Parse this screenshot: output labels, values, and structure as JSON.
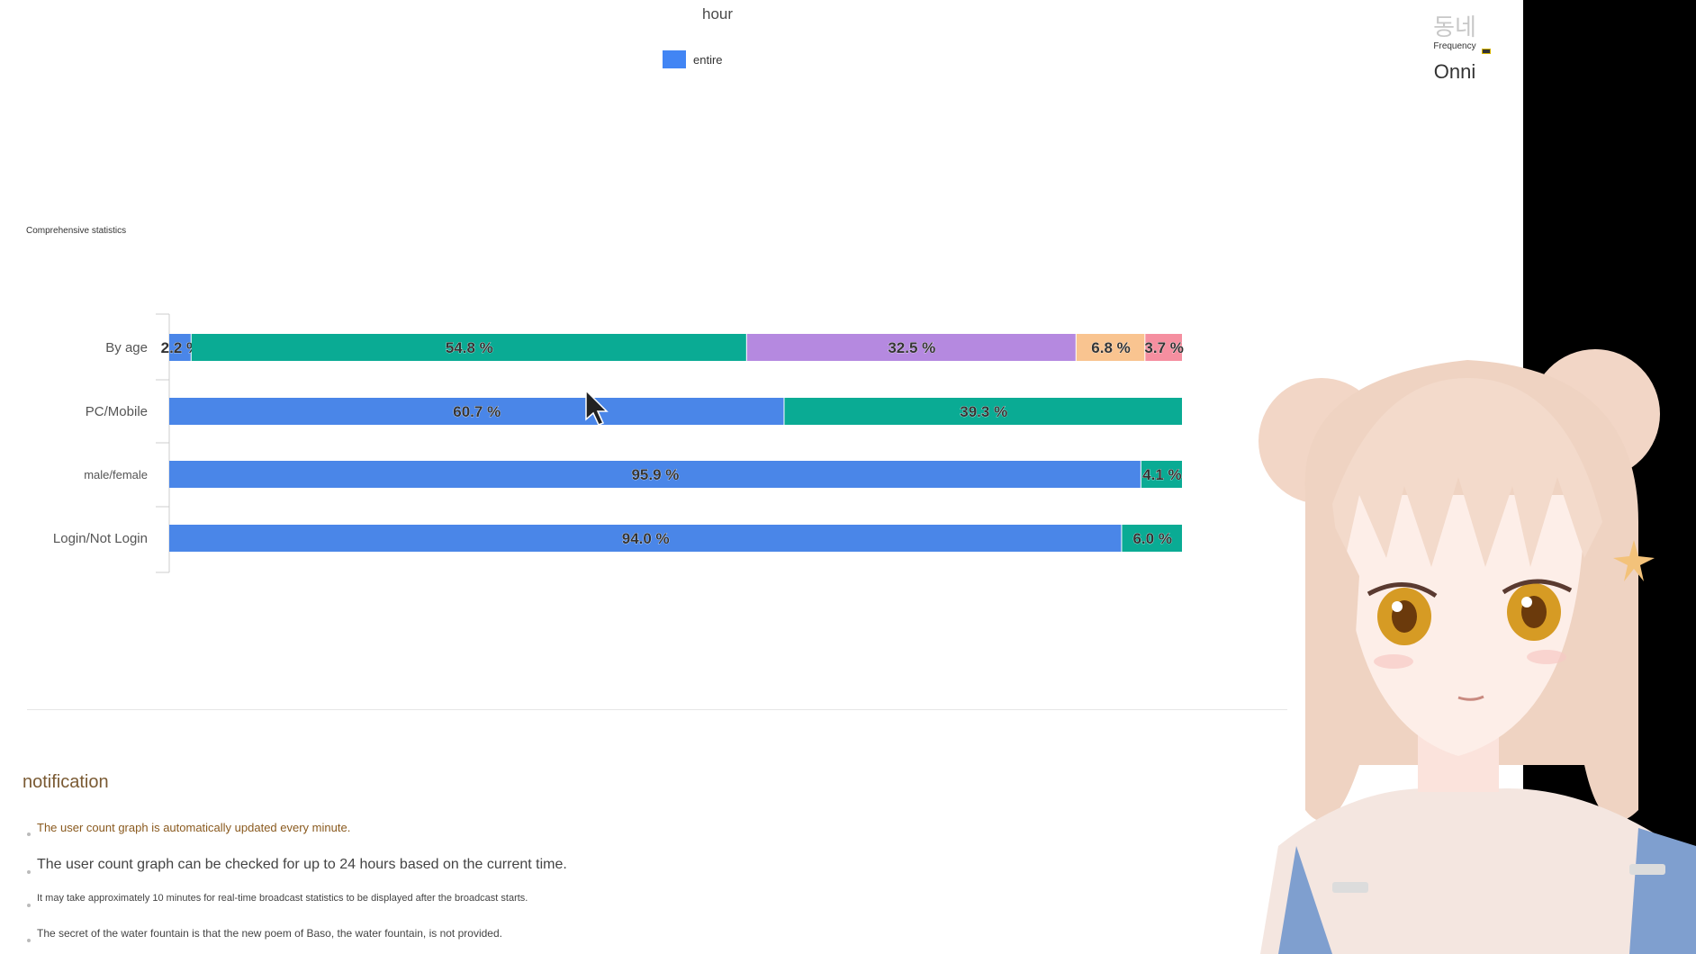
{
  "header": {
    "hour_label": "hour",
    "legend_label": "entire",
    "brand_glyph": "동네",
    "frequency_label": "Frequency",
    "brand_name": "Onni"
  },
  "section": {
    "title": "Comprehensive statistics"
  },
  "chart_data": {
    "type": "bar",
    "orientation": "horizontal-stacked-100",
    "categories": [
      "By age",
      "PC/Mobile",
      "male/female",
      "Login/Not Login"
    ],
    "rows": [
      {
        "category": "By age",
        "segments": [
          {
            "value": 2.2,
            "label": "2.2 %",
            "color": "#4a86e8"
          },
          {
            "value": 54.8,
            "label": "54.8 %",
            "color": "#0aab94"
          },
          {
            "value": 32.5,
            "label": "32.5 %",
            "color": "#b589e0"
          },
          {
            "value": 6.8,
            "label": "6.8 %",
            "color": "#f9c490"
          },
          {
            "value": 3.7,
            "label": "3.7 %",
            "color": "#f58fa0"
          }
        ]
      },
      {
        "category": "PC/Mobile",
        "segments": [
          {
            "value": 60.7,
            "label": "60.7 %",
            "color": "#4a86e8"
          },
          {
            "value": 39.3,
            "label": "39.3 %",
            "color": "#0aab94"
          }
        ]
      },
      {
        "category": "male/female",
        "segments": [
          {
            "value": 95.9,
            "label": "95.9 %",
            "color": "#4a86e8"
          },
          {
            "value": 4.1,
            "label": "4.1 %",
            "color": "#0aab94"
          }
        ]
      },
      {
        "category": "Login/Not Login",
        "segments": [
          {
            "value": 94.0,
            "label": "94.0 %",
            "color": "#4a86e8"
          },
          {
            "value": 6.0,
            "label": "6.0 %",
            "color": "#0aab94"
          }
        ]
      }
    ],
    "xlim": [
      0,
      100
    ]
  },
  "notification": {
    "title": "notification",
    "items": [
      "The user count graph is automatically updated every minute.",
      "The user count graph can be checked for up to 24 hours based on the current time.",
      "It may take approximately 10 minutes for real-time broadcast statistics to be displayed after the broadcast starts.",
      "The secret of the water fountain is that the new poem of Baso, the water fountain, is not provided."
    ]
  },
  "colors": {
    "accent_blue": "#4a86e8",
    "teal": "#0aab94",
    "notice_brown": "#7a5a33"
  }
}
